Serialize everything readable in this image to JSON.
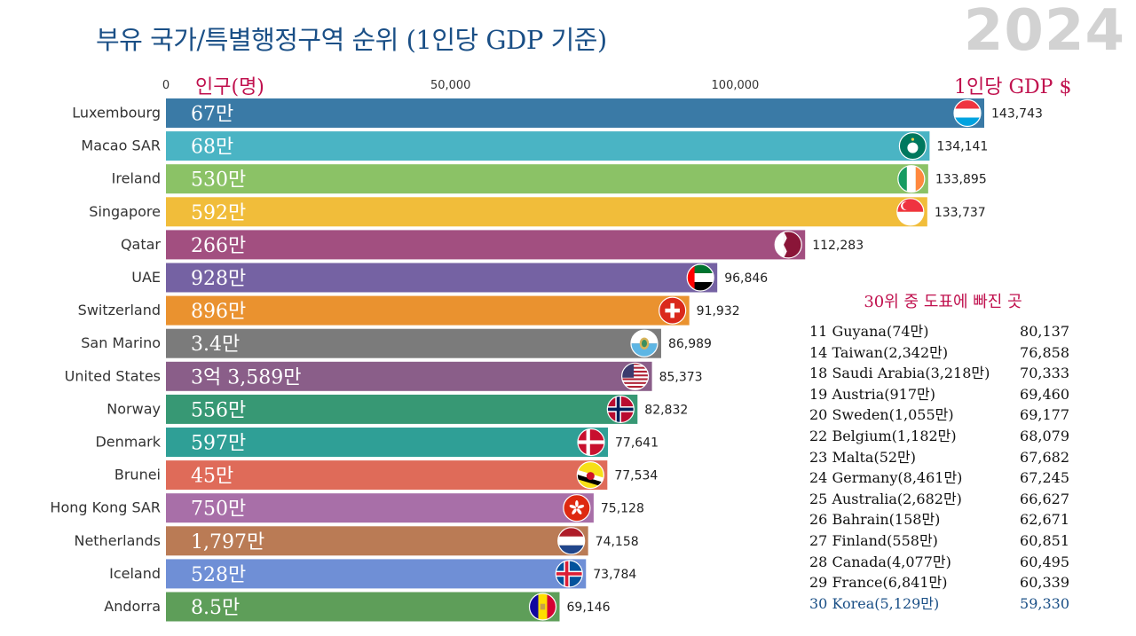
{
  "title": "부유 국가/특별행정구역 순위 (1인당 GDP 기준)",
  "year": "2024",
  "population_header": "인구(명)",
  "gdp_header": "1인당 GDP $",
  "side_panel": {
    "title": "30위 중 도표에 빠진 곳",
    "rows": [
      {
        "label": "11 Guyana(74만)",
        "value": "80,137"
      },
      {
        "label": "14 Taiwan(2,342만)",
        "value": "76,858"
      },
      {
        "label": "18 Saudi Arabia(3,218만)",
        "value": "70,333"
      },
      {
        "label": "19 Austria(917만)",
        "value": "69,460"
      },
      {
        "label": "20 Sweden(1,055만)",
        "value": "69,177"
      },
      {
        "label": "22 Belgium(1,182만)",
        "value": "68,079"
      },
      {
        "label": "23 Malta(52만)",
        "value": "67,682"
      },
      {
        "label": "24 Germany(8,461만)",
        "value": "67,245"
      },
      {
        "label": "25 Australia(2,682만)",
        "value": "66,627"
      },
      {
        "label": "26 Bahrain(158만)",
        "value": "62,671"
      },
      {
        "label": "27 Finland(558만)",
        "value": "60,851"
      },
      {
        "label": "28 Canada(4,077만)",
        "value": "60,495"
      },
      {
        "label": "29 France(6,841만)",
        "value": "60,339"
      },
      {
        "label": "30 Korea(5,129만)",
        "value": "59,330",
        "highlight": true
      }
    ]
  },
  "chart_data": {
    "type": "bar",
    "orientation": "horizontal",
    "xlim": [
      0,
      150000
    ],
    "xticks": [
      0,
      50000,
      100000
    ],
    "xtick_labels": [
      "0",
      "50,000",
      "100,000"
    ],
    "categories": [
      "Luxembourg",
      "Macao SAR",
      "Ireland",
      "Singapore",
      "Qatar",
      "UAE",
      "Switzerland",
      "San Marino",
      "United States",
      "Norway",
      "Denmark",
      "Brunei",
      "Hong Kong SAR",
      "Netherlands",
      "Iceland",
      "Andorra"
    ],
    "values": [
      143743,
      134141,
      133895,
      133737,
      112283,
      96846,
      91932,
      86989,
      85373,
      82832,
      77641,
      77534,
      75128,
      74158,
      73784,
      69146
    ],
    "value_labels": [
      "143,743",
      "134,141",
      "133,895",
      "133,737",
      "112,283",
      "96,846",
      "91,932",
      "86,989",
      "85,373",
      "82,832",
      "77,641",
      "77,534",
      "75,128",
      "74,158",
      "73,784",
      "69,146"
    ],
    "population_labels": [
      "67만",
      "68만",
      "530만",
      "592만",
      "266만",
      "928만",
      "896만",
      "3.4만",
      "3억 3,589만",
      "556만",
      "597만",
      "45만",
      "750만",
      "1,797만",
      "528만",
      "8.5만"
    ],
    "colors": [
      "#3a7aa6",
      "#4ab4c4",
      "#8bc266",
      "#f1bd3a",
      "#a24f80",
      "#7562a3",
      "#ea922f",
      "#7b7b7b",
      "#8a5e89",
      "#379874",
      "#2f9f96",
      "#df6b59",
      "#a86fa8",
      "#ba7b55",
      "#6f8fd6",
      "#5e9e59"
    ],
    "flags": [
      "luxembourg-flag",
      "macao-flag",
      "ireland-flag",
      "singapore-flag",
      "qatar-flag",
      "uae-flag",
      "switzerland-flag",
      "san-marino-flag",
      "united-states-flag",
      "norway-flag",
      "denmark-flag",
      "brunei-flag",
      "hong-kong-flag",
      "netherlands-flag",
      "iceland-flag",
      "andorra-flag"
    ]
  }
}
